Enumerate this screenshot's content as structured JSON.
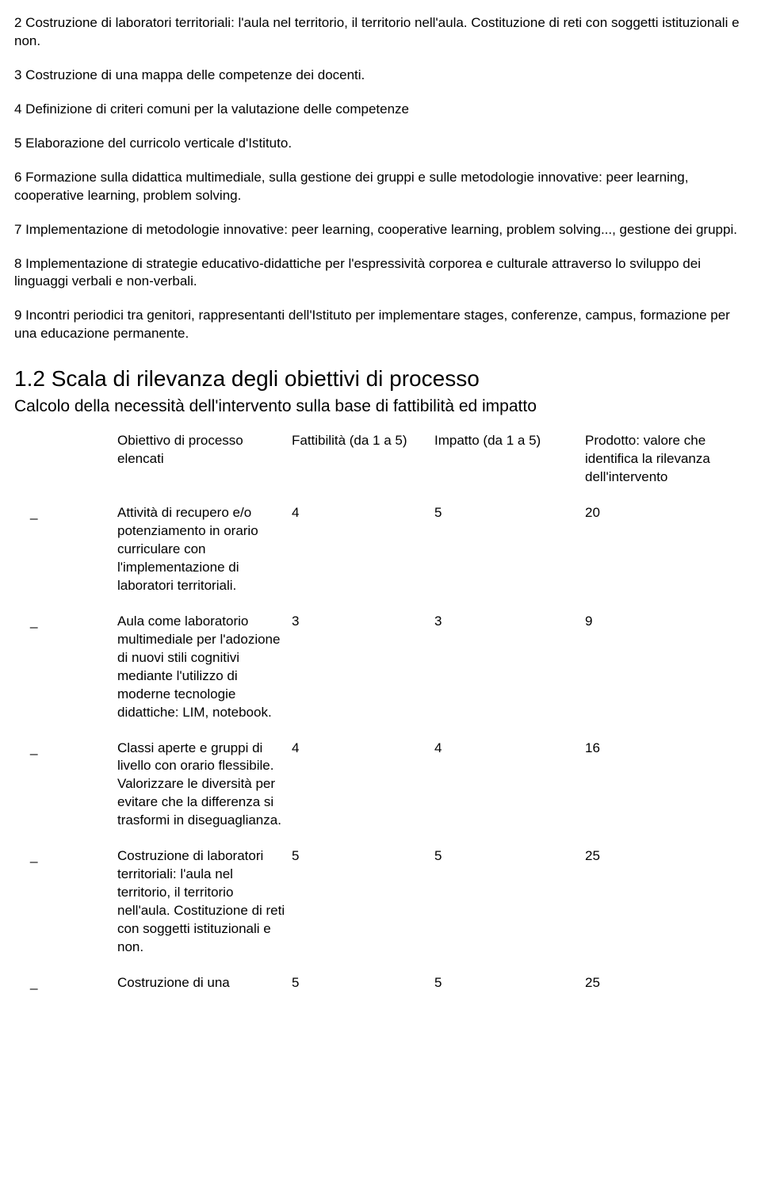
{
  "paragraphs": {
    "p1": "2 Costruzione di laboratori territoriali: l'aula nel territorio, il territorio nell'aula. Costituzione di reti con soggetti istituzionali e non.",
    "p2": "3 Costruzione di una mappa delle competenze dei docenti.",
    "p3": "4 Definizione di criteri comuni per la valutazione delle competenze",
    "p4": "5 Elaborazione del curricolo verticale d'Istituto.",
    "p5": "6 Formazione sulla didattica multimediale, sulla gestione dei gruppi e sulle metodologie innovative: peer learning, cooperative learning, problem solving.",
    "p6": "7 Implementazione di metodologie innovative: peer learning, cooperative learning, problem solving..., gestione dei gruppi.",
    "p7": "8 Implementazione di strategie educativo-didattiche per l'espressività corporea e culturale attraverso lo sviluppo dei linguaggi verbali e non-verbali.",
    "p8": "9 Incontri periodici tra genitori, rappresentanti dell'Istituto per implementare stages, conferenze, campus, formazione per una educazione permanente."
  },
  "section": {
    "heading": "1.2 Scala di rilevanza degli obiettivi di processo",
    "sub": "Calcolo della necessità dell'intervento sulla base di fattibilità ed impatto"
  },
  "table": {
    "headers": {
      "h1": "Obiettivo di processo elencati",
      "h2": "Fattibilità (da 1 a 5)",
      "h3": "Impatto (da 1 a 5)",
      "h4": "Prodotto: valore che identifica la rilevanza dell'intervento"
    },
    "rows": [
      {
        "lead": "_",
        "obj": "Attività di recupero e/o potenziamento in orario curriculare con l'implementazione di laboratori territoriali.",
        "f": "4",
        "i": "5",
        "p": "20"
      },
      {
        "lead": "_",
        "obj": "Aula come laboratorio multimediale per l'adozione di nuovi stili cognitivi mediante l'utilizzo di moderne tecnologie didattiche: LIM, notebook.",
        "f": "3",
        "i": "3",
        "p": "9"
      },
      {
        "lead": "_",
        "obj": "Classi aperte e gruppi di livello con orario flessibile. Valorizzare le diversità per evitare che la differenza si trasformi in diseguaglianza.",
        "f": "4",
        "i": "4",
        "p": "16"
      },
      {
        "lead": "_",
        "obj": "Costruzione di laboratori territoriali: l'aula nel territorio, il territorio nell'aula. Costituzione di reti con soggetti istituzionali e non.",
        "f": "5",
        "i": "5",
        "p": "25"
      },
      {
        "lead": "_",
        "obj": "Costruzione di una",
        "f": "5",
        "i": "5",
        "p": "25"
      }
    ]
  }
}
